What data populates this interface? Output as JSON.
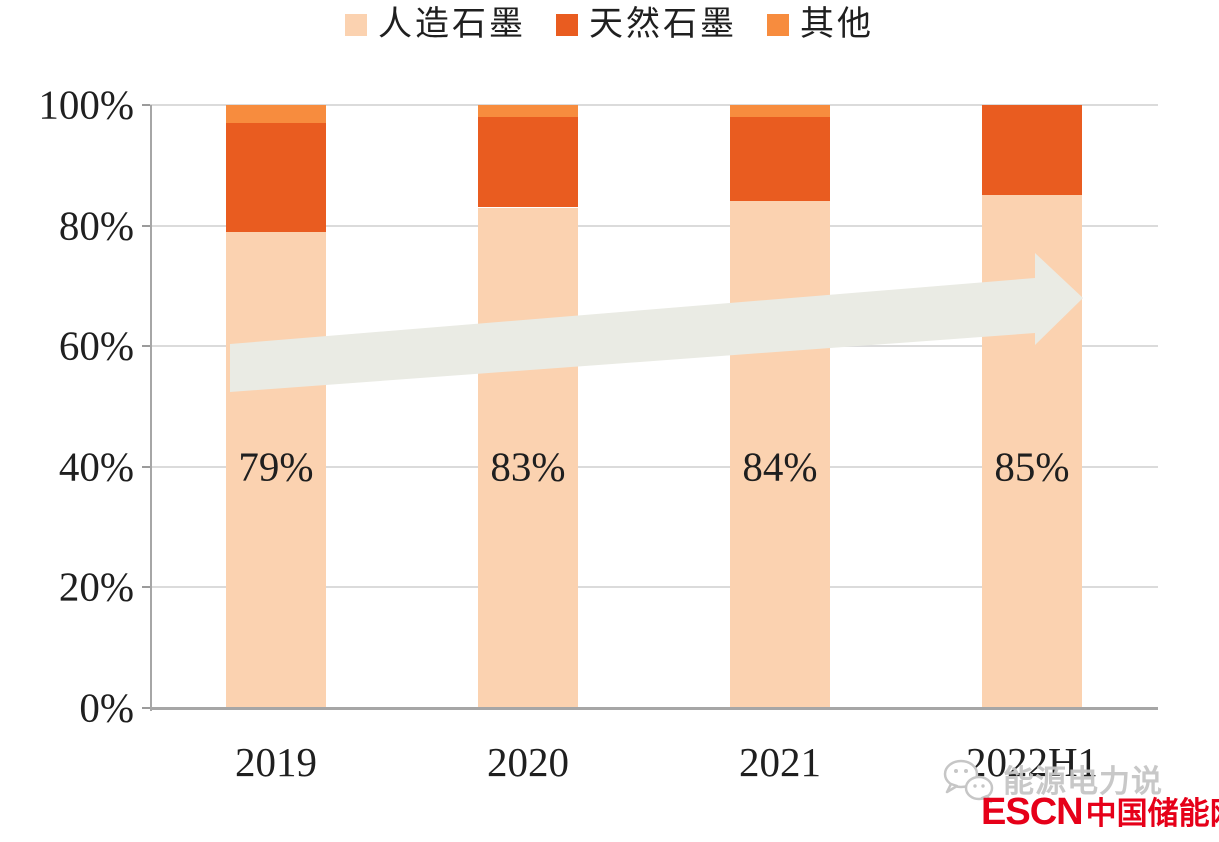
{
  "chart_data": {
    "type": "bar",
    "stacked": true,
    "percent": true,
    "title": "",
    "xlabel": "",
    "ylabel": "",
    "categories": [
      "2019",
      "2020",
      "2021",
      "2022H1"
    ],
    "series": [
      {
        "name": "人造石墨",
        "color": "#FBD2B0",
        "values": [
          79,
          83,
          84,
          85
        ]
      },
      {
        "name": "天然石墨",
        "color": "#E95C20",
        "values": [
          18,
          15,
          14,
          15
        ]
      },
      {
        "name": "其他",
        "color": "#F78C3E",
        "values": [
          3,
          2,
          2,
          0
        ]
      }
    ],
    "bar_labels": [
      "79%",
      "83%",
      "84%",
      "85%"
    ],
    "y_ticks": [
      "100%",
      "80%",
      "60%",
      "40%",
      "20%",
      "0%"
    ],
    "ylim": [
      0,
      100
    ],
    "grid": true,
    "legend_position": "top",
    "annotation": {
      "type": "trend-arrow",
      "direction": "up-right",
      "color": "#EAEBE4"
    }
  },
  "watermark": {
    "icon": "wechat-bubbles-icon",
    "text": "能源电力说",
    "color": "#C6C6C6"
  },
  "logo": {
    "escn": "ESCN",
    "site": "中国储能网",
    "color": "#E60019"
  }
}
